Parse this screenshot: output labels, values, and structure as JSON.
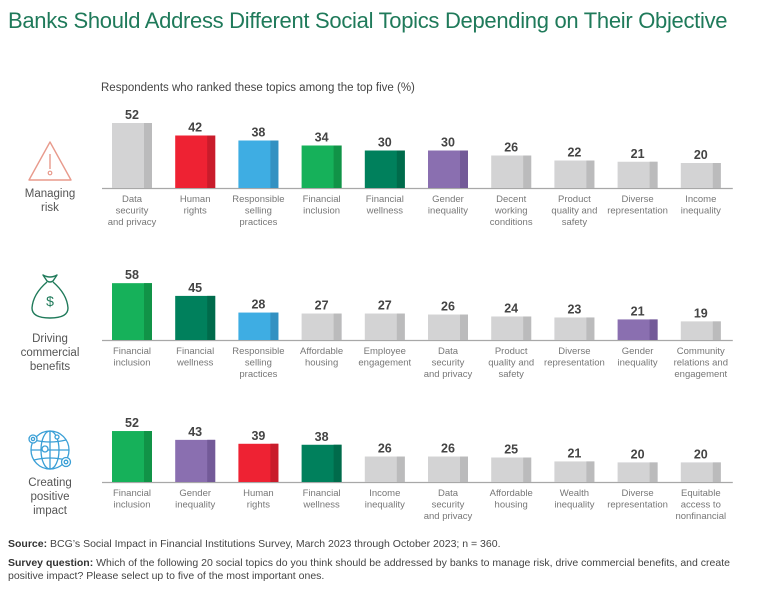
{
  "title": "Banks Should Address Different Social Topics Depending on Their Objective",
  "subtitle": "Respondents who ranked these topics among the top five (%)",
  "colors": {
    "gray": "#d3d3d4",
    "gray_side": "#bbbbbc",
    "red": "#ee2233",
    "red_side": "#c91c2b",
    "blue": "#3eade3",
    "blue_side": "#3391c2",
    "green": "#16b15a",
    "green_side": "#119347",
    "darkgreen": "#00805c",
    "darkgreen_side": "#006b4b",
    "purple": "#8a6fb0",
    "purple_side": "#735a98"
  },
  "chart_data": [
    {
      "type": "bar",
      "title": "Managing risk",
      "icon": "warning-triangle-icon",
      "categories": [
        "Data security and privacy",
        "Human rights",
        "Responsible selling practices",
        "Financial inclusion",
        "Financial wellness",
        "Gender inequality",
        "Decent working conditions",
        "Product quality and safety",
        "Diverse representation",
        "Income inequality"
      ],
      "category_lines": [
        [
          "Data",
          "security",
          "and privacy"
        ],
        [
          "Human",
          "rights"
        ],
        [
          "Responsible",
          "selling",
          "practices"
        ],
        [
          "Financial",
          "inclusion"
        ],
        [
          "Financial",
          "wellness"
        ],
        [
          "Gender",
          "inequality"
        ],
        [
          "Decent",
          "working",
          "conditions"
        ],
        [
          "Product",
          "quality and",
          "safety"
        ],
        [
          "Diverse",
          "representation"
        ],
        [
          "Income",
          "inequality"
        ]
      ],
      "values": [
        52,
        42,
        38,
        34,
        30,
        30,
        26,
        22,
        21,
        20
      ],
      "bar_colors": [
        "gray",
        "red",
        "blue",
        "green",
        "darkgreen",
        "purple",
        "gray",
        "gray",
        "gray",
        "gray"
      ],
      "unit": "%"
    },
    {
      "type": "bar",
      "title": "Driving commercial benefits",
      "icon": "money-bag-icon",
      "categories": [
        "Financial inclusion",
        "Financial wellness",
        "Responsible selling practices",
        "Affordable housing",
        "Employee engagement",
        "Data security and privacy",
        "Product quality and safety",
        "Diverse representation",
        "Gender inequality",
        "Community relations and engagement"
      ],
      "category_lines": [
        [
          "Financial",
          "inclusion"
        ],
        [
          "Financial",
          "wellness"
        ],
        [
          "Responsible",
          "selling",
          "practices"
        ],
        [
          "Affordable",
          "housing"
        ],
        [
          "Employee",
          "engagement"
        ],
        [
          "Data",
          "security",
          "and privacy"
        ],
        [
          "Product",
          "quality and",
          "safety"
        ],
        [
          "Diverse",
          "representation"
        ],
        [
          "Gender",
          "inequality"
        ],
        [
          "Community",
          "relations and",
          "engagement"
        ]
      ],
      "values": [
        58,
        45,
        28,
        27,
        27,
        26,
        24,
        23,
        21,
        19
      ],
      "bar_colors": [
        "green",
        "darkgreen",
        "blue",
        "gray",
        "gray",
        "gray",
        "gray",
        "gray",
        "purple",
        "gray"
      ],
      "unit": "%"
    },
    {
      "type": "bar",
      "title": "Creating positive impact",
      "icon": "globe-network-icon",
      "categories": [
        "Financial inclusion",
        "Gender inequality",
        "Human rights",
        "Financial wellness",
        "Income inequality",
        "Data security and privacy",
        "Affordable housing",
        "Wealth inequality",
        "Diverse representation",
        "Equitable access to nonfinancial"
      ],
      "category_lines": [
        [
          "Financial",
          "inclusion"
        ],
        [
          "Gender",
          "inequality"
        ],
        [
          "Human",
          "rights"
        ],
        [
          "Financial",
          "wellness"
        ],
        [
          "Income",
          "inequality"
        ],
        [
          "Data",
          "security",
          "and privacy"
        ],
        [
          "Affordable",
          "housing"
        ],
        [
          "Wealth",
          "inequality"
        ],
        [
          "Diverse",
          "representation"
        ],
        [
          "Equitable",
          "access to",
          "nonfinancial"
        ]
      ],
      "values": [
        52,
        43,
        39,
        38,
        26,
        26,
        25,
        21,
        20,
        20
      ],
      "bar_colors": [
        "green",
        "purple",
        "red",
        "darkgreen",
        "gray",
        "gray",
        "gray",
        "gray",
        "gray",
        "gray"
      ],
      "unit": "%"
    }
  ],
  "panels": [
    {
      "label_lines": [
        "Managing",
        "risk"
      ]
    },
    {
      "label_lines": [
        "Driving",
        "commercial",
        "benefits"
      ]
    },
    {
      "label_lines": [
        "Creating",
        "positive",
        "impact"
      ]
    }
  ],
  "footer": {
    "source_label": "Source:",
    "source_text": " BCG’s Social Impact in Financial Institutions Survey, March 2023 through October 2023; n = 360.",
    "question_label": "Survey question:",
    "question_text": " Which of the following 20 social topics do you think should be addressed by banks to manage risk, drive commercial benefits, and create positive impact? Please select up to five of the most important ones."
  }
}
